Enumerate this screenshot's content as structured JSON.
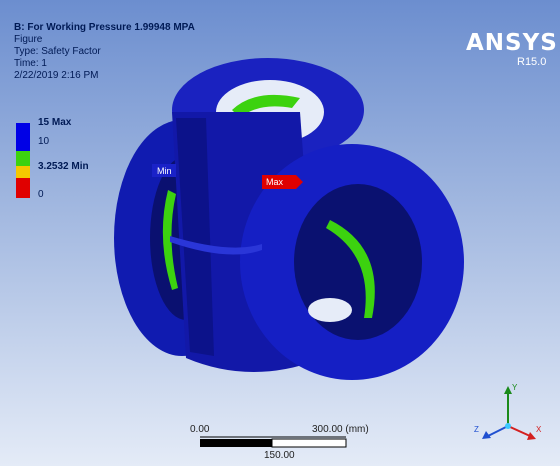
{
  "header": {
    "title": "B: For Working Pressure 1.99948 MPA",
    "line_figure": "Figure",
    "line_type": "Type: Safety Factor",
    "line_time": "Time: 1",
    "line_date": "2/22/2019 2:16 PM"
  },
  "logo": {
    "name": "ANSYS",
    "version": "R15.0"
  },
  "legend": {
    "labels": [
      "15 Max",
      "10",
      "3.2532 Min",
      "0"
    ],
    "colors": [
      "#0000e6",
      "#3cd20f",
      "#f5c800",
      "#e00000"
    ]
  },
  "probes": {
    "min_label": "Min",
    "max_label": "Max"
  },
  "scale": {
    "left": "0.00",
    "right": "300.00 (mm)",
    "mid": "150.00"
  },
  "triad": {
    "y": "Y",
    "x": "X",
    "z": "Z"
  },
  "colors": {
    "model_blue": "#1420c8",
    "model_dark": "#0a1080",
    "green": "#3cd20f"
  }
}
